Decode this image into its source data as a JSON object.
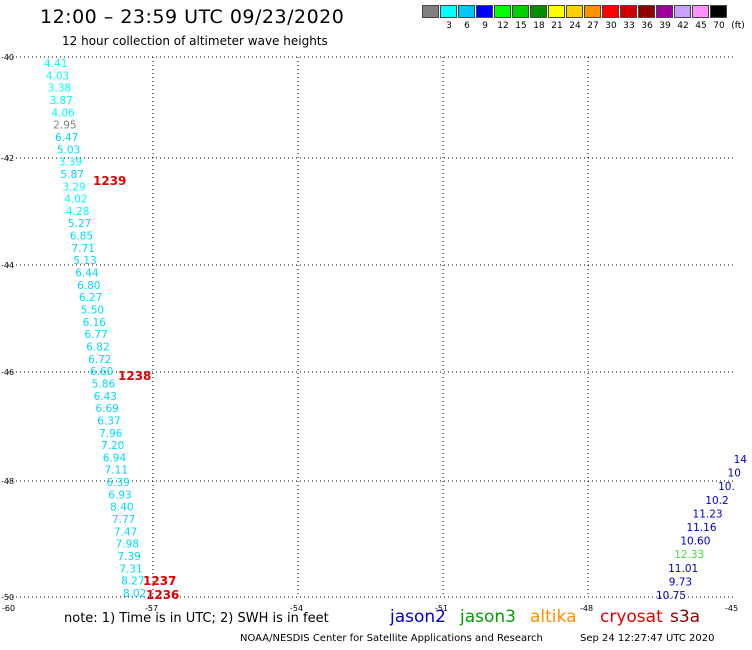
{
  "header": {
    "title": "12:00 – 23:59 UTC 09/23/2020",
    "subtitle": "12 hour collection of altimeter wave heights"
  },
  "legend": {
    "unit": "(ft)",
    "entries": [
      {
        "label": "",
        "color": "#808080"
      },
      {
        "label": "3",
        "color": "#00ffff"
      },
      {
        "label": "6",
        "color": "#00c8ff"
      },
      {
        "label": "9",
        "color": "#0000ff"
      },
      {
        "label": "12",
        "color": "#00ff00"
      },
      {
        "label": "15",
        "color": "#00d000"
      },
      {
        "label": "18",
        "color": "#009000"
      },
      {
        "label": "21",
        "color": "#ffff00"
      },
      {
        "label": "24",
        "color": "#ffd000"
      },
      {
        "label": "27",
        "color": "#ff9000"
      },
      {
        "label": "30",
        "color": "#ff0000"
      },
      {
        "label": "33",
        "color": "#d00000"
      },
      {
        "label": "36",
        "color": "#900000"
      },
      {
        "label": "39",
        "color": "#a000a0"
      },
      {
        "label": "42",
        "color": "#c8a0ff"
      },
      {
        "label": "45",
        "color": "#ff90ff"
      },
      {
        "label": "70",
        "color": "#000000"
      }
    ]
  },
  "map": {
    "lon_ticks": [
      "-60",
      "-57",
      "-54",
      "-51",
      "-48",
      "-45"
    ],
    "lat_ticks": [
      "-40",
      "-42",
      "-44",
      "-46",
      "-48",
      "-50"
    ],
    "lon_range": [
      -60,
      -45
    ],
    "lat_range": [
      -50,
      -40
    ]
  },
  "track_colors": {
    "cyan": "#00d8ff",
    "light_cyan": "#00ffff",
    "gray": "#808080",
    "blue": "#0000c8",
    "green": "#40e040"
  },
  "tracks": {
    "west": [
      {
        "v": "4.41",
        "c": "light_cyan"
      },
      {
        "v": "4.03",
        "c": "light_cyan"
      },
      {
        "v": "3.38",
        "c": "light_cyan"
      },
      {
        "v": "3.87",
        "c": "light_cyan"
      },
      {
        "v": "4.06",
        "c": "light_cyan"
      },
      {
        "v": "2.95",
        "c": "gray"
      },
      {
        "v": "6.47",
        "c": "cyan"
      },
      {
        "v": "5.03",
        "c": "cyan"
      },
      {
        "v": "3.39",
        "c": "light_cyan"
      },
      {
        "v": "5.87",
        "c": "cyan"
      },
      {
        "v": "3.29",
        "c": "light_cyan"
      },
      {
        "v": "4.02",
        "c": "light_cyan"
      },
      {
        "v": "4.28",
        "c": "light_cyan"
      },
      {
        "v": "5.27",
        "c": "cyan"
      },
      {
        "v": "6.85",
        "c": "cyan"
      },
      {
        "v": "7.71",
        "c": "cyan"
      },
      {
        "v": "5.13",
        "c": "cyan"
      },
      {
        "v": "6.44",
        "c": "cyan"
      },
      {
        "v": "6.80",
        "c": "cyan"
      },
      {
        "v": "6.27",
        "c": "cyan"
      },
      {
        "v": "5.50",
        "c": "cyan"
      },
      {
        "v": "6.16",
        "c": "cyan"
      },
      {
        "v": "6.77",
        "c": "cyan"
      },
      {
        "v": "6.82",
        "c": "cyan"
      },
      {
        "v": "6.72",
        "c": "cyan"
      },
      {
        "v": "6.60",
        "c": "cyan"
      },
      {
        "v": "5.86",
        "c": "cyan"
      },
      {
        "v": "6.43",
        "c": "cyan"
      },
      {
        "v": "6.69",
        "c": "cyan"
      },
      {
        "v": "6.37",
        "c": "cyan"
      },
      {
        "v": "7.96",
        "c": "cyan"
      },
      {
        "v": "7.20",
        "c": "cyan"
      },
      {
        "v": "6.94",
        "c": "cyan"
      },
      {
        "v": "7.11",
        "c": "cyan"
      },
      {
        "v": "6.39",
        "c": "cyan"
      },
      {
        "v": "6.93",
        "c": "cyan"
      },
      {
        "v": "8.40",
        "c": "cyan"
      },
      {
        "v": "7.77",
        "c": "cyan"
      },
      {
        "v": "7.47",
        "c": "cyan"
      },
      {
        "v": "7.98",
        "c": "cyan"
      },
      {
        "v": "7.39",
        "c": "cyan"
      },
      {
        "v": "7.31",
        "c": "cyan"
      },
      {
        "v": "8.27",
        "c": "cyan"
      },
      {
        "v": "8.02",
        "c": "cyan"
      }
    ],
    "times": [
      "1239",
      "1238",
      "1237",
      "1236"
    ],
    "east": [
      {
        "v": "14",
        "c": "blue"
      },
      {
        "v": "10",
        "c": "blue"
      },
      {
        "v": "10.",
        "c": "blue"
      },
      {
        "v": "10.2",
        "c": "blue"
      },
      {
        "v": "11.23",
        "c": "blue"
      },
      {
        "v": "11.16",
        "c": "blue"
      },
      {
        "v": "10.60",
        "c": "blue"
      },
      {
        "v": "12.33",
        "c": "green"
      },
      {
        "v": "11.01",
        "c": "blue"
      },
      {
        "v": "9.73",
        "c": "blue"
      },
      {
        "v": "10.75",
        "c": "blue"
      }
    ]
  },
  "footer": {
    "note": "note:  1) Time is in UTC;  2) SWH is in feet",
    "satellites": [
      {
        "name": "jason2",
        "color": "#0000c8"
      },
      {
        "name": "jason3",
        "color": "#00a000"
      },
      {
        "name": "altika",
        "color": "#ff9000"
      },
      {
        "name": "cryosat",
        "color": "#e00000"
      },
      {
        "name": "s3a",
        "color": "#900000"
      }
    ],
    "credit": "NOAA/NESDIS Center for Satellite Applications and Research",
    "timestamp": "Sep 24 12:27:47 UTC 2020"
  }
}
